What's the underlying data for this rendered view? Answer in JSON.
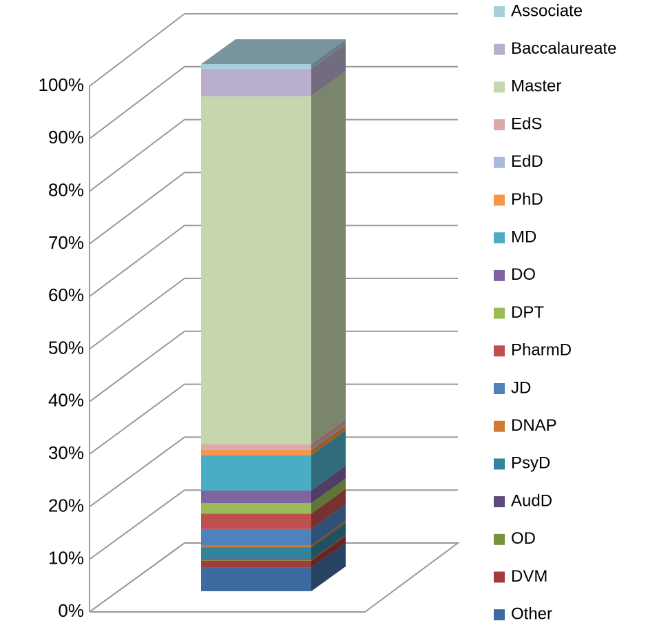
{
  "chart_data": {
    "type": "bar",
    "stacked": true,
    "three_d": true,
    "categories": [
      null
    ],
    "series": [
      {
        "name": "Other",
        "color": "#3f6aa0",
        "values": [
          4.5
        ]
      },
      {
        "name": "DVM",
        "color": "#a33b3b",
        "values": [
          1.3
        ]
      },
      {
        "name": "OD",
        "color": "#77933c",
        "values": [
          0.2
        ]
      },
      {
        "name": "AudD",
        "color": "#5f497a",
        "values": [
          0.2
        ]
      },
      {
        "name": "PsyD",
        "color": "#31849b",
        "values": [
          2.1
        ]
      },
      {
        "name": "DNAP",
        "color": "#d07b32",
        "values": [
          0.4
        ]
      },
      {
        "name": "JD",
        "color": "#4f81bd",
        "values": [
          3.1
        ]
      },
      {
        "name": "PharmD",
        "color": "#c0504d",
        "values": [
          2.9
        ]
      },
      {
        "name": "DPT",
        "color": "#9bbb59",
        "values": [
          2.0
        ]
      },
      {
        "name": "DO",
        "color": "#8064a2",
        "values": [
          2.4
        ]
      },
      {
        "name": "MD",
        "color": "#4bacc6",
        "values": [
          6.7
        ]
      },
      {
        "name": "PhD",
        "color": "#f79646",
        "values": [
          1.0
        ]
      },
      {
        "name": "EdD",
        "color": "#a7b9dd",
        "values": [
          0.2
        ]
      },
      {
        "name": "EdS",
        "color": "#dba9a8",
        "values": [
          0.9
        ]
      },
      {
        "name": "Master",
        "color": "#c6d7ae",
        "values": [
          66.0
        ]
      },
      {
        "name": "Baccalaureate",
        "color": "#b9aecb",
        "values": [
          5.2
        ]
      },
      {
        "name": "Associate",
        "color": "#a6cedb",
        "values": [
          0.9
        ]
      }
    ],
    "ylim": [
      0,
      100
    ],
    "yticks": [
      {
        "value": 0,
        "label": "0%"
      },
      {
        "value": 10,
        "label": "10%"
      },
      {
        "value": 20,
        "label": "20%"
      },
      {
        "value": 30,
        "label": "30%"
      },
      {
        "value": 40,
        "label": "40%"
      },
      {
        "value": 50,
        "label": "50%"
      },
      {
        "value": 60,
        "label": "60%"
      },
      {
        "value": 70,
        "label": "70%"
      },
      {
        "value": 80,
        "label": "80%"
      },
      {
        "value": 90,
        "label": "90%"
      },
      {
        "value": 100,
        "label": "100%"
      }
    ],
    "grid": true,
    "legend": "right"
  }
}
